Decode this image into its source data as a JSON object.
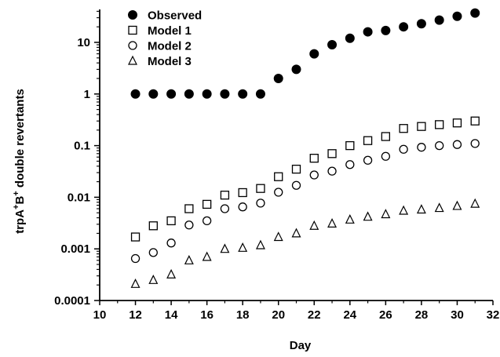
{
  "chart_data": {
    "type": "scatter",
    "title": "",
    "xlabel": "Day",
    "ylabel": "trpA⁺B⁺ double revertants",
    "ylabel_parts": {
      "a": "trpA",
      "a_sup": "+",
      "b": "B",
      "b_sup": "+",
      "rest": " double revertants"
    },
    "xlim": [
      10,
      32
    ],
    "ylim": [
      0.0001,
      50
    ],
    "yscale": "log",
    "xticks": [
      10,
      12,
      14,
      16,
      18,
      20,
      22,
      24,
      26,
      28,
      30,
      32
    ],
    "xtick_labels": [
      "10",
      "12",
      "14",
      "16",
      "18",
      "20",
      "22",
      "24",
      "26",
      "28",
      "30",
      "32"
    ],
    "yticks": [
      0.0001,
      0.001,
      0.01,
      0.1,
      1,
      10
    ],
    "ytick_labels": [
      "0.0001",
      "0.001",
      "0.01",
      "0.1",
      "1",
      "10"
    ],
    "grid": false,
    "legend_position": "top-left",
    "series": [
      {
        "name": "Observed",
        "marker": "filled-circle",
        "x": [
          12,
          13,
          14,
          15,
          16,
          17,
          18,
          19,
          20,
          21,
          22,
          23,
          24,
          25,
          26,
          27,
          28,
          29,
          30,
          31
        ],
        "y": [
          1,
          1,
          1,
          1,
          1,
          1,
          1,
          1,
          2,
          3,
          6,
          9,
          12,
          16,
          17,
          20,
          23,
          27,
          32,
          37
        ]
      },
      {
        "name": "Model 1",
        "marker": "open-square",
        "x": [
          12,
          13,
          14,
          15,
          16,
          17,
          18,
          19,
          20,
          21,
          22,
          23,
          24,
          25,
          26,
          27,
          28,
          29,
          30,
          31
        ],
        "y": [
          0.0017,
          0.0028,
          0.0035,
          0.006,
          0.0073,
          0.011,
          0.0123,
          0.0148,
          0.025,
          0.035,
          0.057,
          0.07,
          0.1,
          0.125,
          0.15,
          0.215,
          0.235,
          0.255,
          0.275,
          0.3
        ]
      },
      {
        "name": "Model 2",
        "marker": "open-circle",
        "x": [
          12,
          13,
          14,
          15,
          16,
          17,
          18,
          19,
          20,
          21,
          22,
          23,
          24,
          25,
          26,
          27,
          28,
          29,
          30,
          31
        ],
        "y": [
          0.00065,
          0.00085,
          0.0013,
          0.0029,
          0.0035,
          0.006,
          0.0065,
          0.0077,
          0.0125,
          0.017,
          0.027,
          0.032,
          0.043,
          0.052,
          0.062,
          0.085,
          0.093,
          0.1,
          0.105,
          0.11
        ]
      },
      {
        "name": "Model 3",
        "marker": "open-triangle",
        "x": [
          12,
          13,
          14,
          15,
          16,
          17,
          18,
          19,
          20,
          21,
          22,
          23,
          24,
          25,
          26,
          27,
          28,
          29,
          30,
          31
        ],
        "y": [
          0.00021,
          0.00025,
          0.00032,
          0.0006,
          0.0007,
          0.001,
          0.00105,
          0.00118,
          0.0017,
          0.002,
          0.0028,
          0.0031,
          0.0037,
          0.0042,
          0.0047,
          0.0055,
          0.0058,
          0.0062,
          0.0068,
          0.0075
        ]
      }
    ]
  }
}
